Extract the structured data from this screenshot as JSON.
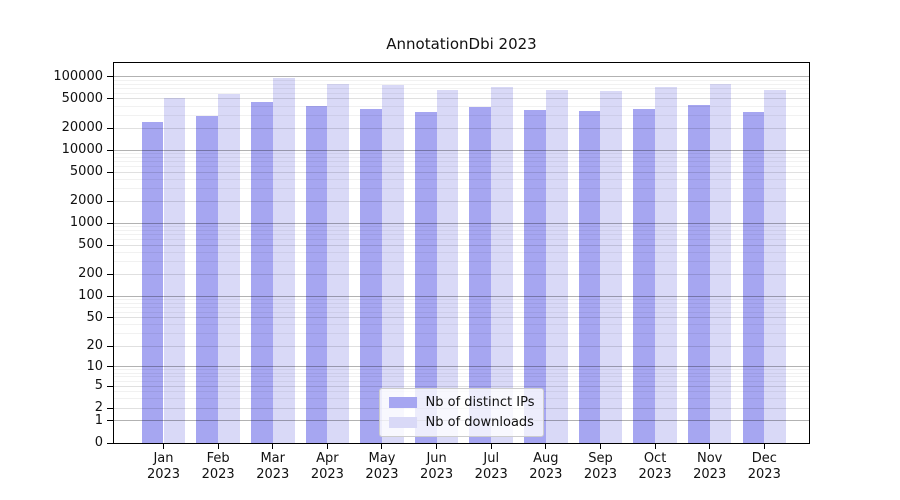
{
  "chart_data": {
    "type": "bar",
    "title": "AnnotationDbi 2023",
    "yscale": "log1p",
    "ylim": [
      0,
      155000
    ],
    "grid": true,
    "legend_position": "lower center",
    "categories": [
      "Jan 2023",
      "Feb 2023",
      "Mar 2023",
      "Apr 2023",
      "May 2023",
      "Jun 2023",
      "Jul 2023",
      "Aug 2023",
      "Sep 2023",
      "Oct 2023",
      "Nov 2023",
      "Dec 2023"
    ],
    "y_ticks": [
      0,
      1,
      2,
      5,
      10,
      20,
      50,
      100,
      200,
      500,
      1000,
      2000,
      5000,
      10000,
      20000,
      50000,
      100000
    ],
    "series": [
      {
        "name": "Nb of distinct IPs",
        "color": "#a6a6f1",
        "values": [
          24500,
          29000,
          46000,
          39500,
          37000,
          33500,
          39000,
          35500,
          34500,
          36500,
          41500,
          33000
        ]
      },
      {
        "name": "Nb of downloads",
        "color": "#d9d9f7",
        "values": [
          52000,
          59000,
          96000,
          80000,
          76500,
          65500,
          73000,
          67000,
          64000,
          72500,
          80500,
          67000
        ]
      }
    ],
    "colors": {
      "spine": "#000000",
      "background": "#ffffff",
      "bar_distinct_ips": "#a6a6f1",
      "bar_downloads": "#d9d9f7",
      "legend_border": "#cccccc"
    }
  }
}
